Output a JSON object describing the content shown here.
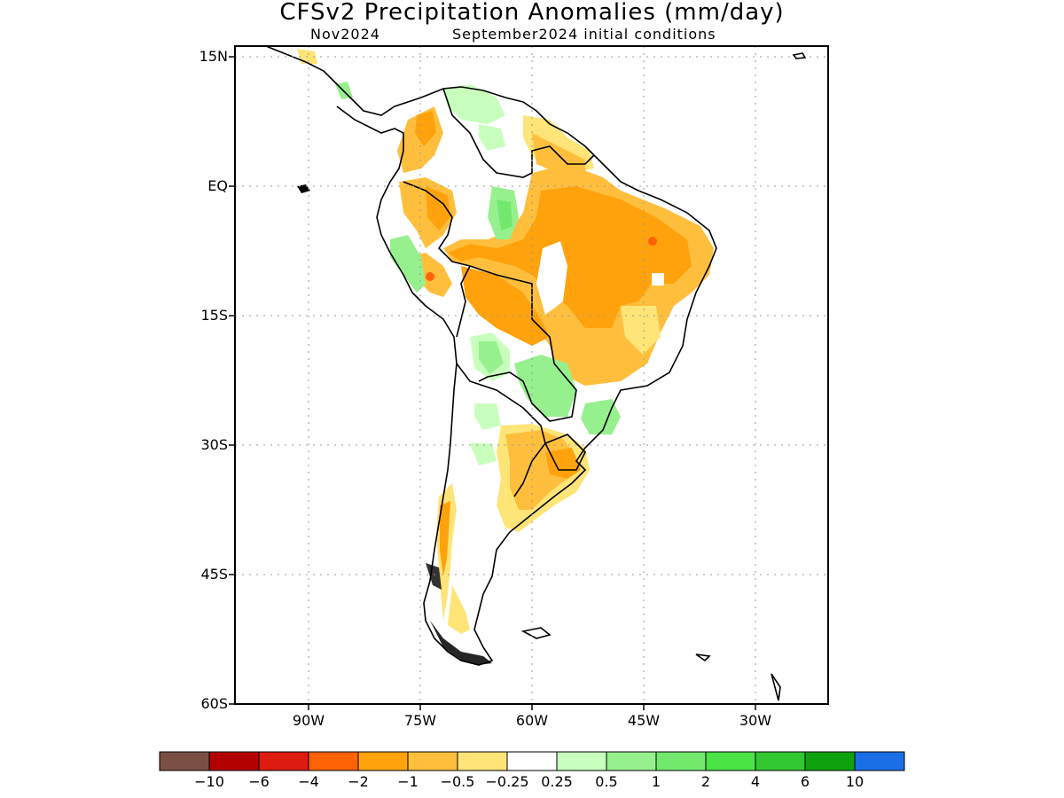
{
  "title": "CFSv2 Precipitation Anomalies (mm/day)",
  "subtitle_month": "Nov2024",
  "subtitle_init": "September2024 initial conditions",
  "y_axis_labels": [
    "15N",
    "EQ",
    "15S",
    "30S",
    "45S",
    "60S"
  ],
  "x_axis_labels": [
    "90W",
    "75W",
    "60W",
    "45W",
    "30W"
  ],
  "colorbar": {
    "colors": [
      "#7a5044",
      "#b30000",
      "#dd1c0f",
      "#ff6306",
      "#ffa20c",
      "#ffbf3d",
      "#ffe477",
      "#ffffff",
      "#c8ffbd",
      "#96f08e",
      "#72e96d",
      "#4ae447",
      "#32c832",
      "#0ea30e",
      "#1a6fe6"
    ],
    "labels": [
      "−10",
      "−6",
      "−4",
      "−2",
      "−1",
      "−0.5",
      "−0.25",
      "0.25",
      "0.5",
      "1",
      "2",
      "4",
      "6",
      "10"
    ]
  },
  "map": {
    "region": "South America",
    "lon_range": [
      -99,
      -19
    ],
    "lat_range": [
      -60,
      16
    ],
    "grid": true
  }
}
